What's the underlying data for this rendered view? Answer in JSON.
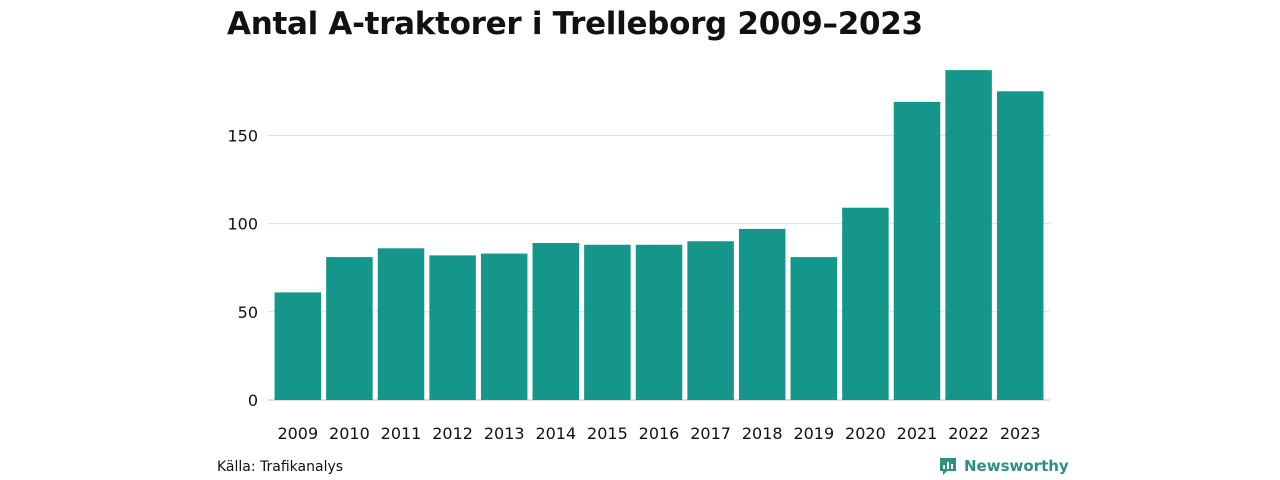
{
  "chart_data": {
    "type": "bar",
    "title": "Antal A-traktorer i Trelleborg 2009–2023",
    "categories": [
      "2009",
      "2010",
      "2011",
      "2012",
      "2013",
      "2014",
      "2015",
      "2016",
      "2017",
      "2018",
      "2019",
      "2020",
      "2021",
      "2022",
      "2023"
    ],
    "values": [
      61,
      81,
      86,
      82,
      83,
      89,
      88,
      88,
      90,
      97,
      81,
      109,
      169,
      187,
      175
    ],
    "yticks": [
      0,
      50,
      100,
      150
    ],
    "ylim": [
      0,
      190
    ],
    "xlabel": "",
    "ylabel": "",
    "grid": true,
    "bar_color": "#14968a"
  },
  "source": "Källa: Trafikanalys",
  "brand": {
    "name": "Newsworthy",
    "icon": "newsworthy-logo-icon",
    "color": "#2f8f84"
  }
}
